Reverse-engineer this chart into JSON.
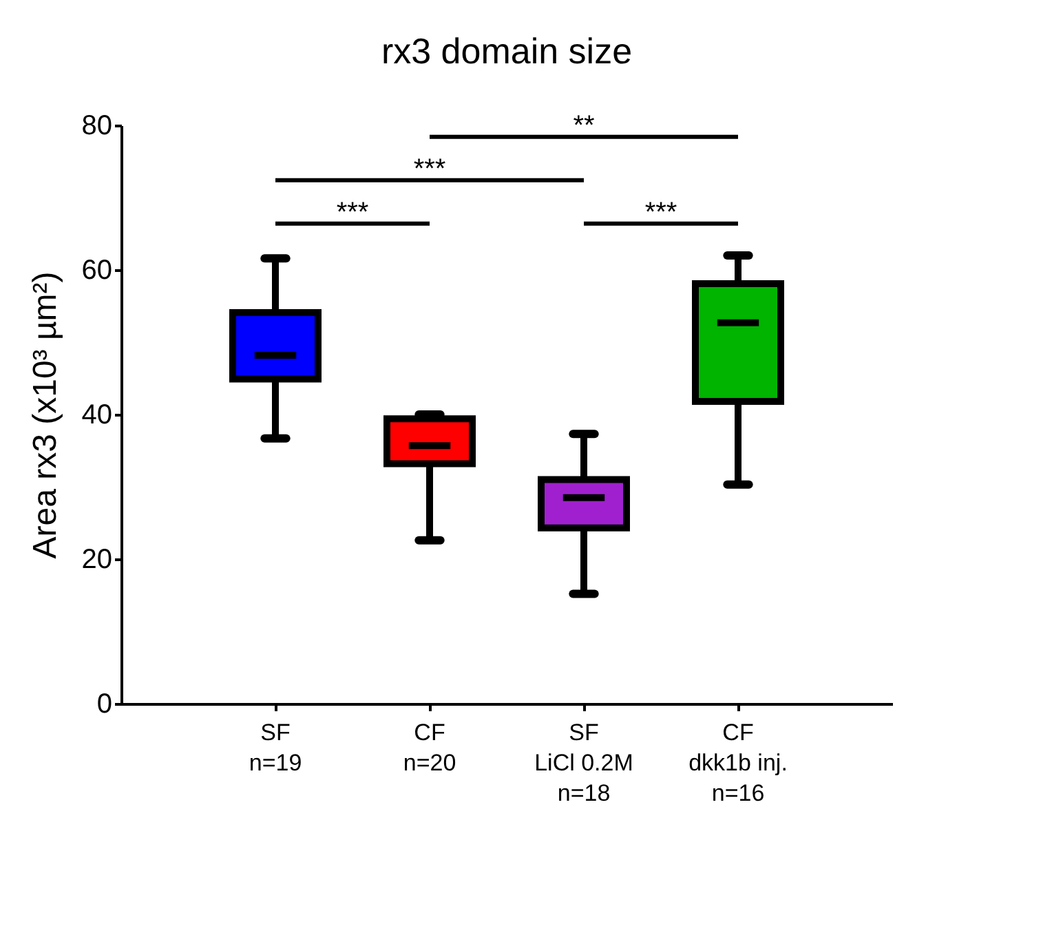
{
  "chart_data": {
    "type": "box",
    "title": "rx3 domain size",
    "ylabel": "Area rx3 (x10³ µm²)",
    "categories": [
      "SF\nn=19",
      "CF\nn=20",
      "SF\nLiCl 0.2M\nn=18",
      "CF\ndkk1b inj.\nn=16"
    ],
    "colors": [
      "#0000ff",
      "#ff0000",
      "#a020d0",
      "#00b400"
    ],
    "boxes": [
      {
        "low": 36.7,
        "q1": 44.9,
        "median": 48.2,
        "q3": 54.1,
        "high": 61.6
      },
      {
        "low": 22.6,
        "q1": 33.2,
        "median": 35.7,
        "q3": 39.4,
        "high": 40.0
      },
      {
        "low": 15.2,
        "q1": 24.3,
        "median": 28.5,
        "q3": 31.0,
        "high": 37.3
      },
      {
        "low": 30.3,
        "q1": 41.8,
        "median": 52.7,
        "q3": 58.1,
        "high": 62.0
      }
    ],
    "ylim": [
      0,
      80
    ],
    "yticks": [
      0,
      20,
      40,
      60,
      80
    ],
    "grid": false,
    "legend": false,
    "annotations": [
      "***",
      "***",
      "**",
      "***"
    ]
  }
}
